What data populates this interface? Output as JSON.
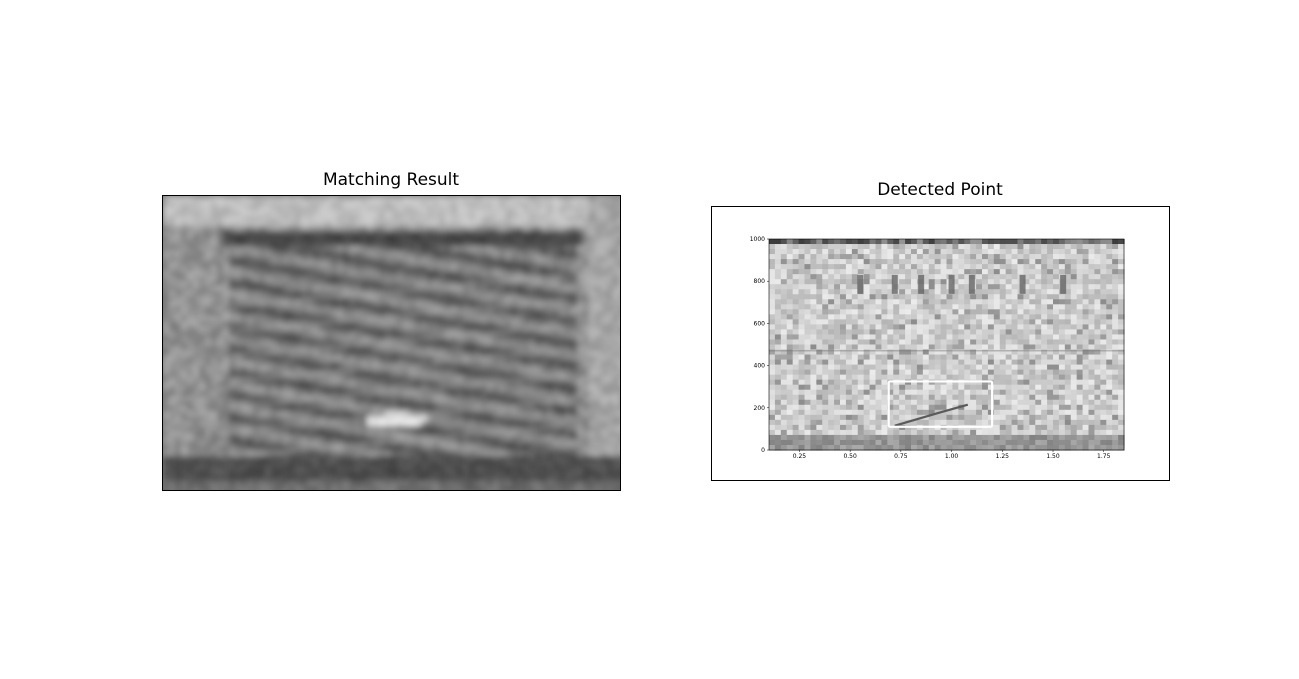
{
  "panels": {
    "left": {
      "title": "Matching Result"
    },
    "right": {
      "title": "Detected Point"
    }
  },
  "chart_data": [
    {
      "type": "heatmap",
      "title": "Matching Result",
      "colormap": "gray",
      "axes_visible": false
    },
    {
      "type": "heatmap",
      "title": "Detected Point",
      "colormap": "gray",
      "xlim": [
        0.1,
        1.85
      ],
      "ylim": [
        0,
        1000
      ],
      "xticks": [
        0.25,
        0.5,
        0.75,
        1.0,
        1.25,
        1.5,
        1.75
      ],
      "xtick_labels": [
        "0.25",
        "0.50",
        "0.75",
        "1.00",
        "1.25",
        "1.50",
        "1.75"
      ],
      "yticks": [
        0,
        200,
        400,
        600,
        800,
        1000
      ],
      "ytick_labels": [
        "0",
        "200",
        "400",
        "600",
        "800",
        "1000"
      ],
      "detection_box": {
        "x0": 0.69,
        "x1": 1.2,
        "y0": 110,
        "y1": 325,
        "color": "#ffffff"
      }
    }
  ]
}
